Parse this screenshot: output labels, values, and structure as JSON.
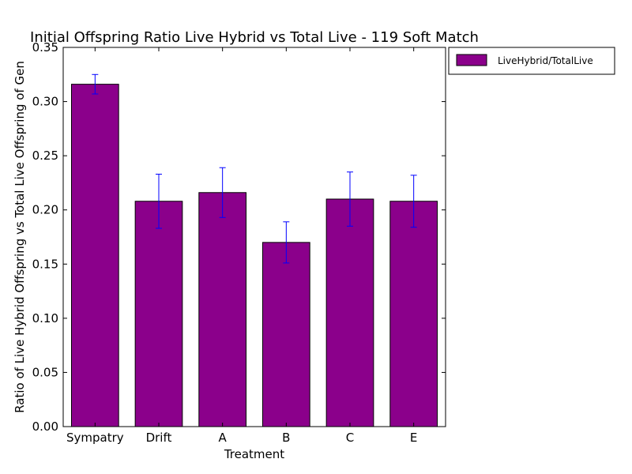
{
  "chart_data": {
    "type": "bar",
    "title": "Initial Offspring Ratio Live Hybrid vs Total Live - 119 Soft Match",
    "xlabel": "Treatment",
    "ylabel": "Ratio of Live Hybrid Offspring vs Total Live Offspring of Gen",
    "categories": [
      "Sympatry",
      "Drift",
      "A",
      "B",
      "C",
      "E"
    ],
    "series": [
      {
        "name": "LiveHybrid/TotalLive",
        "values": [
          0.316,
          0.208,
          0.216,
          0.17,
          0.21,
          0.208
        ],
        "error": [
          0.009,
          0.025,
          0.023,
          0.019,
          0.025,
          0.024
        ]
      }
    ],
    "ylim": [
      0,
      0.35
    ],
    "yticks": [
      "0.00",
      "0.05",
      "0.10",
      "0.15",
      "0.20",
      "0.25",
      "0.30",
      "0.35"
    ],
    "grid": false,
    "legend_position": "outside-top-right",
    "colors": {
      "bar": "#8b008b",
      "error_bar": "#0000ff",
      "axis": "#000000"
    }
  }
}
